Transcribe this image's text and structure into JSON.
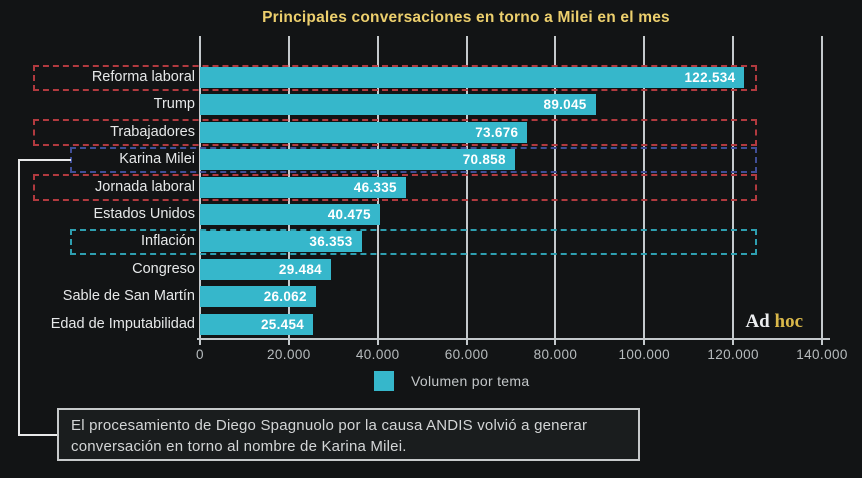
{
  "title": "Principales conversaciones en torno a Milei en el mes",
  "colors": {
    "background": "#121415",
    "bar": "#36b7cb",
    "title": "#eccf6d",
    "axis": "#c4c9cc",
    "highlight_red": "#b13a3f",
    "highlight_navy": "#3f4e96",
    "highlight_teal": "#2e9fb0",
    "logo_gold": "#d9b84a"
  },
  "legend": {
    "label": "Volumen por tema"
  },
  "logo": {
    "part1": "Ad",
    "part2": "hoc"
  },
  "caption": "El procesamiento de Diego Spagnuolo por la causa ANDIS volvió a generar conversación en torno al nombre de Karina Milei.",
  "chart_data": {
    "type": "bar",
    "orientation": "horizontal",
    "title": "Principales conversaciones en torno a Milei en el mes",
    "categories": [
      "Reforma laboral",
      "Trump",
      "Trabajadores",
      "Karina Milei",
      "Jornada laboral",
      "Estados Unidos",
      "Inflación",
      "Congreso",
      "Sable de San Martín",
      "Edad de Imputabilidad"
    ],
    "values": [
      122534,
      89045,
      73676,
      70858,
      46335,
      40475,
      36353,
      29484,
      26062,
      25454
    ],
    "value_labels": [
      "122.534",
      "89.045",
      "73.676",
      "70.858",
      "46.335",
      "40.475",
      "36.353",
      "29.484",
      "26.062",
      "25.454"
    ],
    "xlabel": "",
    "ylabel": "",
    "xlim": [
      0,
      140000
    ],
    "grid": true,
    "legend_position": "bottom",
    "legend_entries": [
      "Volumen por tema"
    ],
    "xticks": [
      {
        "value": 0,
        "label": "0"
      },
      {
        "value": 20000,
        "label": "20.000"
      },
      {
        "value": 40000,
        "label": "40.000"
      },
      {
        "value": 60000,
        "label": "60.000"
      },
      {
        "value": 80000,
        "label": "80.000"
      },
      {
        "value": 100000,
        "label": "100.000"
      },
      {
        "value": 120000,
        "label": "120.000"
      },
      {
        "value": 140000,
        "label": "140.000"
      }
    ],
    "highlights": [
      {
        "category": "Reforma laboral",
        "index": 0,
        "color": "#b13a3f",
        "extends_over_label": true
      },
      {
        "category": "Trabajadores",
        "index": 2,
        "color": "#b13a3f",
        "extends_over_label": true
      },
      {
        "category": "Karina Milei",
        "index": 3,
        "color": "#3f4e96",
        "extends_over_label": false
      },
      {
        "category": "Jornada laboral",
        "index": 4,
        "color": "#b13a3f",
        "extends_over_label": true
      },
      {
        "category": "Inflación",
        "index": 6,
        "color": "#2e9fb0",
        "extends_over_label": false
      }
    ],
    "annotation": {
      "text": "El procesamiento de Diego Spagnuolo por la causa ANDIS volvió a generar conversación en torno al nombre de Karina Milei.",
      "points_to": "Karina Milei"
    }
  }
}
